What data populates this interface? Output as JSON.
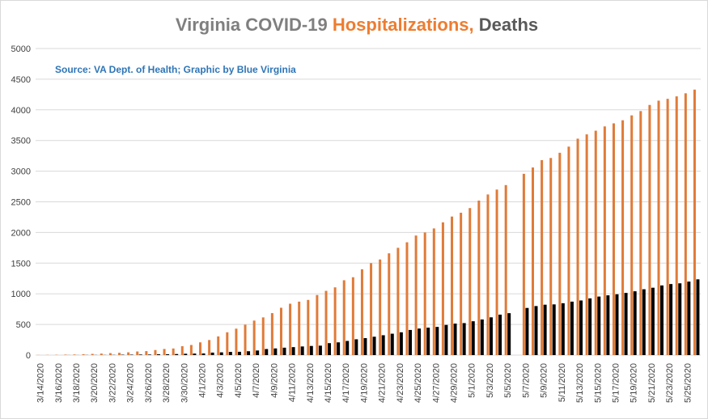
{
  "chart_data": {
    "type": "bar",
    "title": [
      "Virginia COVID-19 ",
      "Hospitalizations,",
      " Deaths"
    ],
    "title_colors": [
      "#7f7f7f",
      "#ed7d31",
      "#595959"
    ],
    "annotation": "Source: VA Dept. of Health; Graphic by Blue Virginia",
    "categories": [
      "3/14/2020",
      null,
      "3/16/2020",
      null,
      "3/18/2020",
      null,
      "3/20/2020",
      null,
      "3/22/2020",
      null,
      "3/24/2020",
      null,
      "3/26/2020",
      null,
      "3/28/2020",
      null,
      "3/30/2020",
      null,
      "4/1/2020",
      null,
      "4/3/2020",
      null,
      "4/5/2020",
      null,
      "4/7/2020",
      null,
      "4/9/2020",
      null,
      "4/11/2020",
      null,
      "4/13/2020",
      null,
      "4/15/2020",
      null,
      "4/17/2020",
      null,
      "4/19/2020",
      null,
      "4/21/2020",
      null,
      "4/23/2020",
      null,
      "4/25/2020",
      null,
      "4/27/2020",
      null,
      "4/29/2020",
      null,
      "5/1/2020",
      null,
      "5/3/2020",
      null,
      "5/5/2020",
      null,
      "5/7/2020",
      null,
      "5/9/2020",
      null,
      "5/11/2020",
      null,
      "5/13/2020",
      null,
      "5/15/2020",
      null,
      "5/17/2020",
      null,
      "5/19/2020",
      null,
      "5/21/2020",
      null,
      "5/23/2020",
      null,
      "5/25/2020",
      null
    ],
    "series": [
      {
        "name": "Hospitalizations",
        "color": "#e07b39",
        "values": [
          2,
          3,
          5,
          8,
          10,
          15,
          20,
          25,
          32,
          38,
          45,
          59,
          65,
          83,
          100,
          108,
          145,
          165,
          208,
          246,
          305,
          372,
          431,
          497,
          563,
          615,
          685,
          772,
          838,
          872,
          900,
          980,
          1048,
          1105,
          1221,
          1270,
          1400,
          1500,
          1560,
          1660,
          1750,
          1840,
          1950,
          2000,
          2066,
          2165,
          2260,
          2322,
          2398,
          2520,
          2620,
          2700,
          2773,
          null,
          2957,
          3060,
          3180,
          3215,
          3300,
          3400,
          3530,
          3600,
          3660,
          3730,
          3780,
          3830,
          3910,
          3980,
          4080,
          4150,
          4180,
          4220,
          4270,
          4330
        ]
      },
      {
        "name": "Deaths",
        "color": "#000000",
        "values": [
          0,
          0,
          0,
          1,
          1,
          2,
          2,
          2,
          3,
          6,
          7,
          9,
          9,
          13,
          14,
          17,
          22,
          25,
          27,
          41,
          45,
          52,
          54,
          63,
          75,
          99,
          109,
          121,
          130,
          141,
          149,
          154,
          195,
          208,
          231,
          258,
          277,
          300,
          324,
          349,
          372,
          410,
          433,
          448,
          460,
          492,
          514,
          522,
          552,
          581,
          616,
          660,
          684,
          null,
          769,
          800,
          822,
          827,
          846,
          872,
          891,
          925,
          955,
          975,
          992,
          1014,
          1041,
          1074,
          1099,
          1136,
          1159,
          1171,
          1199,
          1236
        ]
      }
    ],
    "ylim": [
      0,
      5000
    ],
    "yticks": [
      0,
      500,
      1000,
      1500,
      2000,
      2500,
      3000,
      3500,
      4000,
      4500,
      5000
    ],
    "grid": true
  }
}
